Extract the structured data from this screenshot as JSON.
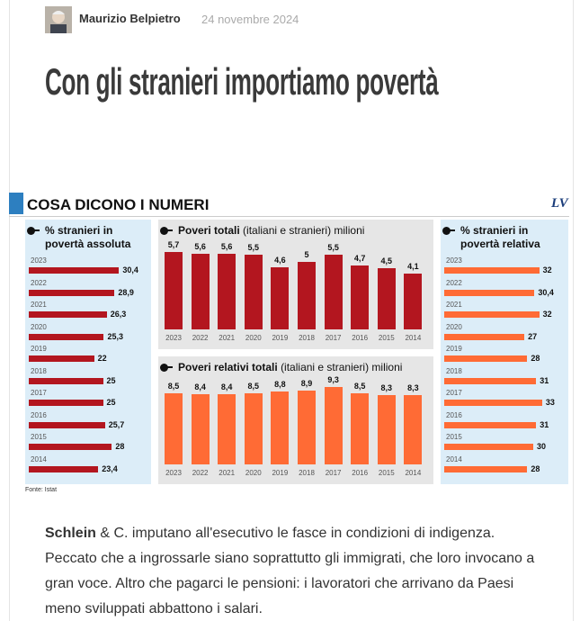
{
  "header": {
    "author": "Maurizio Belpietro",
    "date": "24 novembre 2024"
  },
  "headline": "Con gli stranieri importiamo povertà",
  "infographic": {
    "title": "COSA DICONO I NUMERI",
    "logo": "LV",
    "source": "Fonte: Istat",
    "charts": [
      {
        "type": "bar",
        "orientation": "horizontal",
        "title": "% stranieri in povertà assoluta",
        "categories": [
          "2023",
          "2022",
          "2021",
          "2020",
          "2019",
          "2018",
          "2017",
          "2016",
          "2015",
          "2014"
        ],
        "values": [
          30.4,
          28.9,
          26.3,
          25.3,
          22,
          25,
          25,
          25.7,
          28,
          23.4
        ],
        "value_labels": [
          "30,4",
          "28,9",
          "26,3",
          "25,3",
          "22",
          "25",
          "25",
          "25,7",
          "28",
          "23,4"
        ],
        "color": "#b3161f"
      },
      {
        "type": "bar",
        "orientation": "vertical",
        "title": "Poveri totali",
        "subtitle": "(italiani e stranieri) milioni",
        "categories": [
          "2023",
          "2022",
          "2021",
          "2020",
          "2019",
          "2018",
          "2017",
          "2016",
          "2015",
          "2014"
        ],
        "values": [
          5.7,
          5.6,
          5.6,
          5.5,
          4.6,
          5,
          5.5,
          4.7,
          4.5,
          4.1
        ],
        "value_labels": [
          "5,7",
          "5,6",
          "5,6",
          "5,5",
          "4,6",
          "5",
          "5,5",
          "4,7",
          "4,5",
          "4,1"
        ],
        "color": "#b3161f"
      },
      {
        "type": "bar",
        "orientation": "vertical",
        "title": "Poveri relativi totali",
        "subtitle": "(italiani e stranieri) milioni",
        "categories": [
          "2023",
          "2022",
          "2021",
          "2020",
          "2019",
          "2018",
          "2017",
          "2016",
          "2015",
          "2014"
        ],
        "values": [
          8.5,
          8.4,
          8.4,
          8.5,
          8.8,
          8.9,
          9.3,
          8.5,
          8.3,
          8.3
        ],
        "value_labels": [
          "8,5",
          "8,4",
          "8,4",
          "8,5",
          "8,8",
          "8,9",
          "9,3",
          "8,5",
          "8,3",
          "8,3"
        ],
        "color": "#ff6b35"
      },
      {
        "type": "bar",
        "orientation": "horizontal",
        "title": "% stranieri in povertà relativa",
        "categories": [
          "2023",
          "2022",
          "2021",
          "2020",
          "2019",
          "2018",
          "2017",
          "2016",
          "2015",
          "2014"
        ],
        "values": [
          32,
          30.4,
          32,
          27,
          28,
          31,
          33,
          31,
          30,
          28
        ],
        "value_labels": [
          "32",
          "30,4",
          "32",
          "27",
          "28",
          "31",
          "33",
          "31",
          "30",
          "28"
        ],
        "color": "#ff6b35"
      }
    ]
  },
  "body": {
    "lead": "Schlein",
    "text": "& C. imputano all'esecutivo le fasce in condizioni di indigenza. Peccato che a ingrossarle siano soprattutto gli immigrati, che loro invocano a gran voce. Altro che pagarci le pensioni: i lavoratori che arrivano da Paesi meno sviluppati abbattono i salari."
  }
}
